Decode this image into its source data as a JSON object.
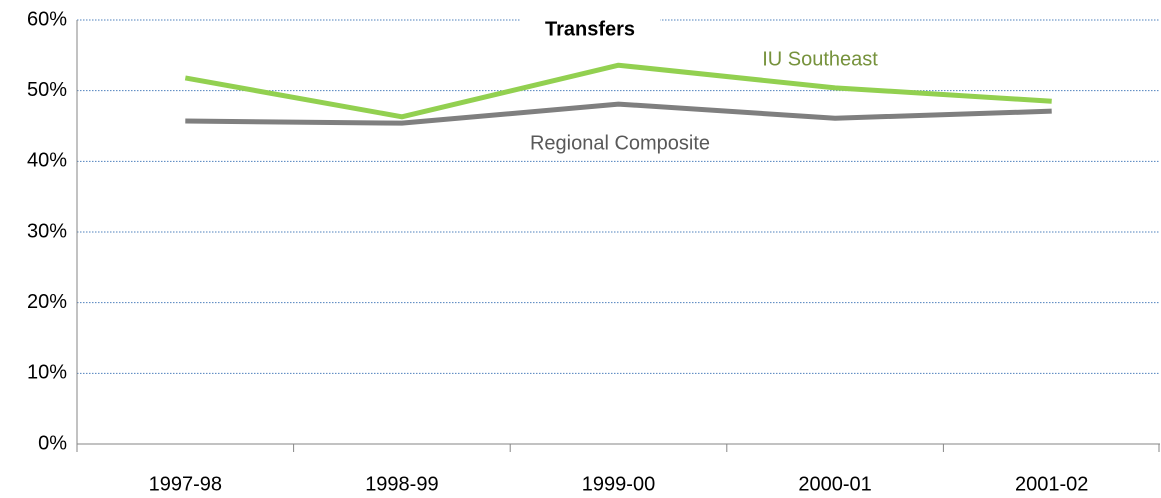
{
  "chart_data": {
    "type": "line",
    "title": "Transfers",
    "categories": [
      "1997-98",
      "1998-99",
      "1999-00",
      "2000-01",
      "2001-02"
    ],
    "series": [
      {
        "name": "IU Southeast",
        "color": "#92d050",
        "label_color": "#76923c",
        "values": [
          51.8,
          46.3,
          53.6,
          50.4,
          48.5
        ]
      },
      {
        "name": "Regional Composite",
        "color": "#7f7f7f",
        "label_color": "#595959",
        "values": [
          45.7,
          45.4,
          48.1,
          46.1,
          47.1
        ]
      }
    ],
    "ylim": [
      0,
      60
    ],
    "yticks": [
      {
        "value": 0,
        "label": "0%"
      },
      {
        "value": 10,
        "label": "10%"
      },
      {
        "value": 20,
        "label": "20%"
      },
      {
        "value": 30,
        "label": "30%"
      },
      {
        "value": 40,
        "label": "40%"
      },
      {
        "value": 50,
        "label": "50%"
      },
      {
        "value": 60,
        "label": "60%"
      }
    ],
    "grid": true
  }
}
